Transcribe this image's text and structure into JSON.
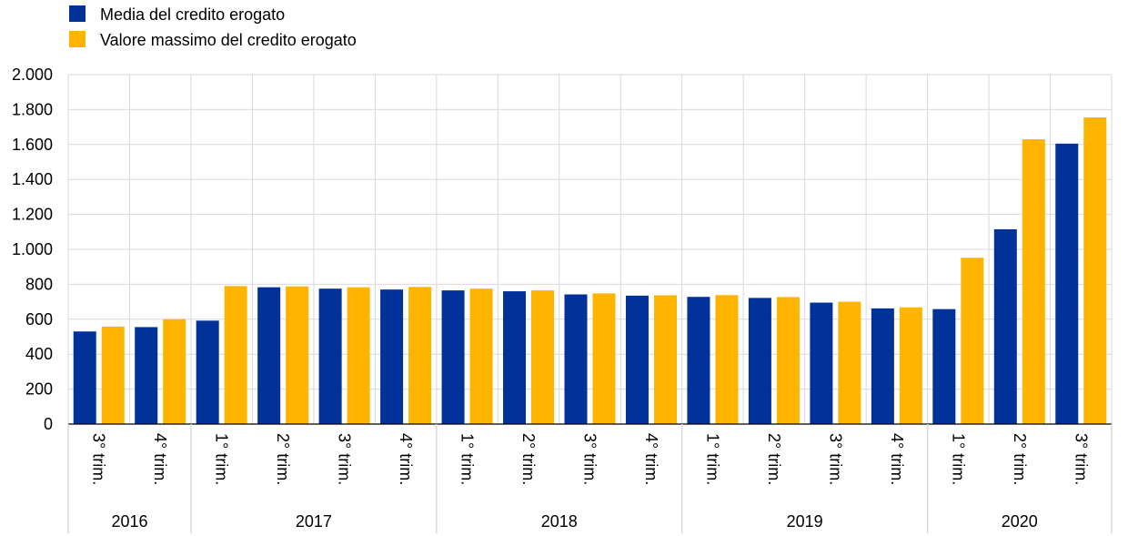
{
  "chart_data": {
    "type": "bar",
    "title": "",
    "xlabel": "",
    "ylabel": "",
    "ylim": [
      0,
      2000
    ],
    "yticks": [
      0,
      200,
      400,
      600,
      800,
      1000,
      1200,
      1400,
      1600,
      1800,
      2000
    ],
    "ytick_labels": [
      "0",
      "200",
      "400",
      "600",
      "800",
      "1.000",
      "1.200",
      "1.400",
      "1.600",
      "1.800",
      "2.000"
    ],
    "grid": true,
    "legend_position": "top-left",
    "categories": [
      "3° trim.",
      "4° trim.",
      "1° trim.",
      "2° trim.",
      "3° trim.",
      "4° trim.",
      "1° trim.",
      "2° trim.",
      "3° trim.",
      "4° trim.",
      "1° trim.",
      "2° trim.",
      "3° trim.",
      "4° trim.",
      "1° trim.",
      "2° trim.",
      "3° trim."
    ],
    "year_groups": [
      {
        "label": "2016",
        "count": 2
      },
      {
        "label": "2017",
        "count": 4
      },
      {
        "label": "2018",
        "count": 4
      },
      {
        "label": "2019",
        "count": 4
      },
      {
        "label": "2020",
        "count": 3
      }
    ],
    "series": [
      {
        "name": "Media del credito erogato",
        "color": "#003299",
        "values": [
          530,
          555,
          592,
          783,
          775,
          770,
          765,
          760,
          742,
          735,
          728,
          722,
          695,
          662,
          658,
          1115,
          1605
        ]
      },
      {
        "name": "Valore massimo del credito erogato",
        "color": "#FFB400",
        "values": [
          558,
          600,
          790,
          788,
          783,
          785,
          775,
          765,
          748,
          737,
          738,
          727,
          700,
          668,
          952,
          1630,
          1755
        ]
      }
    ]
  }
}
